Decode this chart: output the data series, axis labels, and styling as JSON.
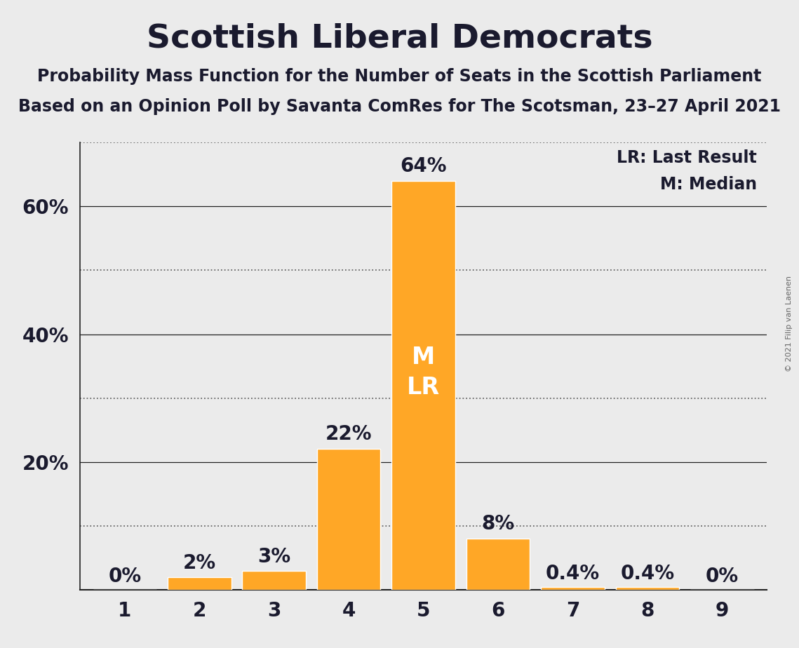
{
  "title": "Scottish Liberal Democrats",
  "subtitle1": "Probability Mass Function for the Number of Seats in the Scottish Parliament",
  "subtitle2": "Based on an Opinion Poll by Savanta ComRes for The Scotsman, 23–27 April 2021",
  "copyright": "© 2021 Filip van Laenen",
  "categories": [
    1,
    2,
    3,
    4,
    5,
    6,
    7,
    8,
    9
  ],
  "values": [
    0.0,
    2.0,
    3.0,
    22.0,
    64.0,
    8.0,
    0.4,
    0.4,
    0.0
  ],
  "bar_color": "#FFA726",
  "background_color": "#EBEBEB",
  "text_color": "#1A1A2E",
  "label_texts": [
    "0%",
    "2%",
    "3%",
    "22%",
    "64%",
    "8%",
    "0.4%",
    "0.4%",
    "0%"
  ],
  "inside_label_bars": [
    4,
    5
  ],
  "ml_bar": 5,
  "ml_text": "M\nLR",
  "legend_lr": "LR: Last Result",
  "legend_m": "M: Median",
  "ylim_max": 70,
  "solid_gridlines": [
    20,
    40,
    60
  ],
  "dotted_gridlines": [
    10,
    30,
    50,
    70
  ],
  "ytick_values": [
    20,
    40,
    60
  ],
  "ytick_labels": [
    "20%",
    "40%",
    "60%"
  ],
  "title_fontsize": 34,
  "subtitle_fontsize": 17,
  "tick_fontsize": 20,
  "label_fontsize": 20,
  "legend_fontsize": 17,
  "ml_fontsize": 24,
  "copyright_fontsize": 8
}
